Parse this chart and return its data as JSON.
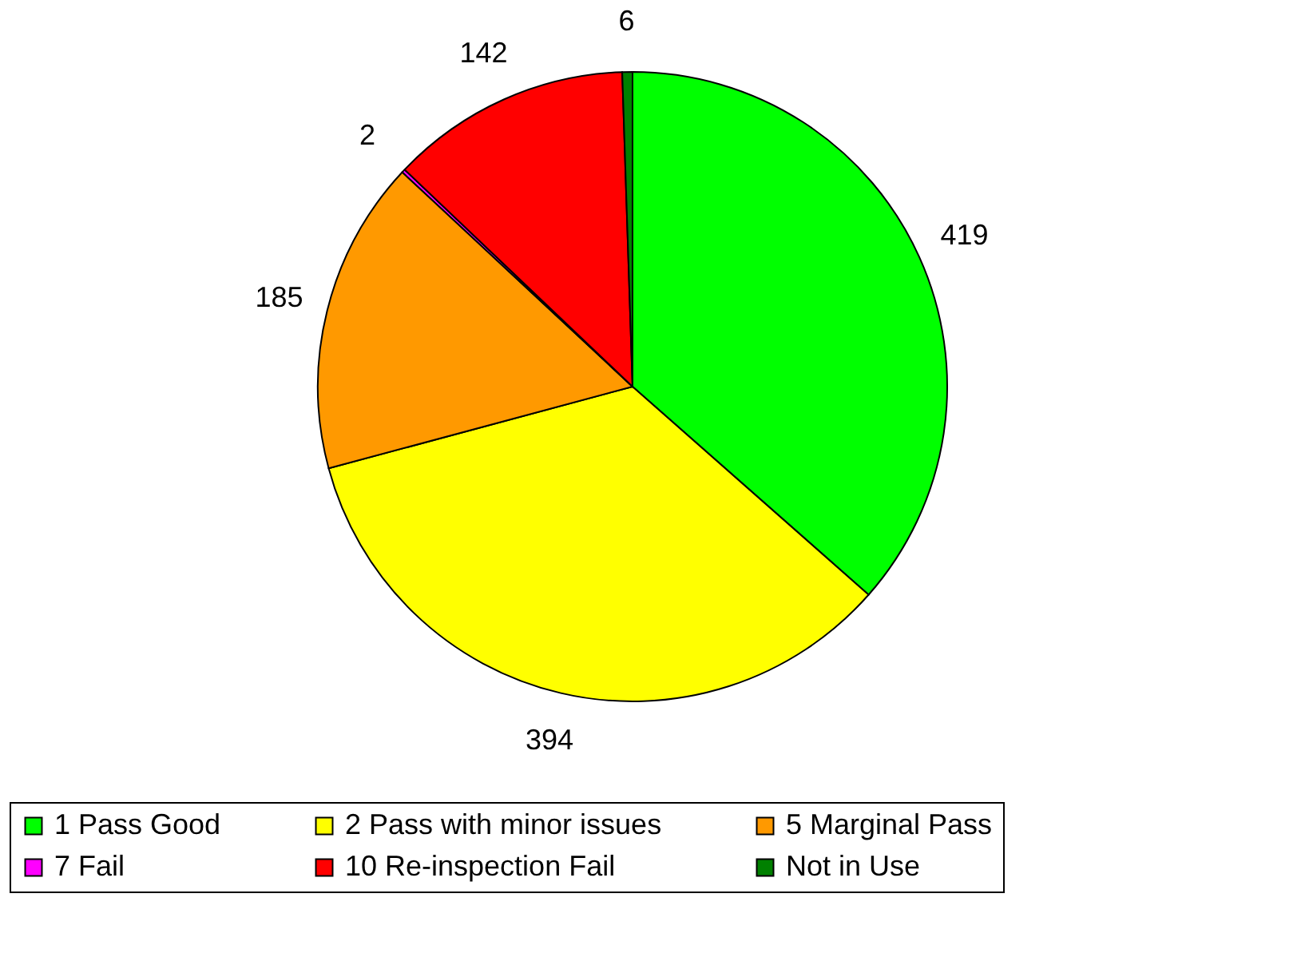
{
  "chart_data": {
    "type": "pie",
    "categories": [
      "1 Pass Good",
      "2 Pass with minor issues",
      "5 Marginal Pass",
      "7 Fail",
      "10 Re-inspection Fail",
      "Not in Use"
    ],
    "values": [
      419,
      394,
      185,
      2,
      142,
      6
    ],
    "colors": [
      "#00ff00",
      "#ffff00",
      "#ff9900",
      "#ff00ff",
      "#ff0000",
      "#008000"
    ],
    "data_labels": true,
    "legend": "bottom"
  }
}
